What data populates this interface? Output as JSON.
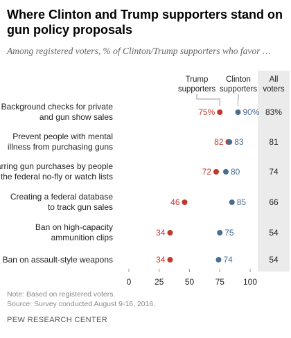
{
  "title": "Where Clinton and Trump supporters stand on gun policy proposals",
  "subtitle": "Among registered voters, % of Clinton/Trump supporters who favor …",
  "note": "Note: Based on registered voters.",
  "source": "Source: Survey conducted August 9-16, 2016.",
  "brand": "PEW RESEARCH CENTER",
  "chart_data": {
    "type": "scatter",
    "xlim": [
      0,
      100
    ],
    "xticks": [
      "0",
      "25",
      "50",
      "75",
      "100"
    ],
    "headers": {
      "trump": [
        "Trump",
        "supporters"
      ],
      "clinton": [
        "Clinton",
        "supporters"
      ],
      "all": [
        "All",
        "voters"
      ]
    },
    "colors": {
      "trump": "#c0392b",
      "clinton": "#4a6e8f",
      "all_bg": "#ebebeb"
    },
    "rows": [
      {
        "label": [
          "Background checks for private",
          "and gun show sales"
        ],
        "trump": 75,
        "clinton": 90,
        "trump_label": "75%",
        "clinton_label": "90%",
        "all": "83%"
      },
      {
        "label": [
          "Prevent people with mental",
          "illness from purchasing guns"
        ],
        "trump": 82,
        "clinton": 83,
        "trump_label": "82",
        "clinton_label": "83",
        "all": "81"
      },
      {
        "label": [
          "Barring gun purchases by people",
          "on the federal no-fly or watch lists"
        ],
        "trump": 72,
        "clinton": 80,
        "trump_label": "72",
        "clinton_label": "80",
        "all": "74"
      },
      {
        "label": [
          "Creating a federal database",
          "to track gun sales"
        ],
        "trump": 46,
        "clinton": 85,
        "trump_label": "46",
        "clinton_label": "85",
        "all": "66"
      },
      {
        "label": [
          "Ban on high-capacity",
          "ammunition clips"
        ],
        "trump": 34,
        "clinton": 75,
        "trump_label": "34",
        "clinton_label": "75",
        "all": "54"
      },
      {
        "label": [
          "Ban on assault-style weapons"
        ],
        "trump": 34,
        "clinton": 74,
        "trump_label": "34",
        "clinton_label": "74",
        "all": "54"
      }
    ]
  }
}
